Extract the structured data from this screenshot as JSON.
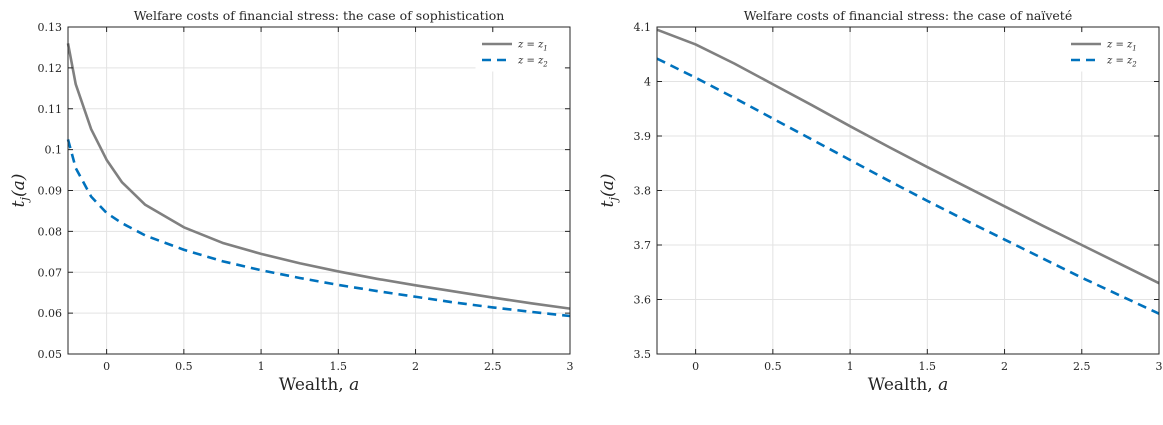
{
  "chart_data": [
    {
      "type": "line",
      "title": "Welfare costs of financial stress: the case of sophistication",
      "xlabel": "Wealth, a",
      "ylabel": "t_j(a)",
      "xlim": [
        -0.25,
        3
      ],
      "ylim": [
        0.05,
        0.13
      ],
      "xticks": [
        0,
        0.5,
        1,
        1.5,
        2,
        2.5,
        3
      ],
      "xtick_labels": [
        "0",
        "0.5",
        "1",
        "1.5",
        "2",
        "2.5",
        "3"
      ],
      "yticks": [
        0.05,
        0.06,
        0.07,
        0.08,
        0.09,
        0.1,
        0.11,
        0.12,
        0.13
      ],
      "ytick_labels": [
        "0.05",
        "0.06",
        "0.07",
        "0.08",
        "0.09",
        "0.1",
        "0.11",
        "0.12",
        "0.13"
      ],
      "grid": true,
      "legend_position": "top-right",
      "x": [
        -0.25,
        -0.2,
        -0.1,
        0,
        0.1,
        0.25,
        0.5,
        0.75,
        1,
        1.25,
        1.5,
        1.75,
        2,
        2.25,
        2.5,
        2.75,
        3
      ],
      "series": [
        {
          "name": "z = z_1",
          "color": "#808080",
          "style": "solid",
          "values": [
            0.126,
            0.116,
            0.105,
            0.0975,
            0.092,
            0.0865,
            0.081,
            0.0772,
            0.0745,
            0.0722,
            0.0702,
            0.0684,
            0.0668,
            0.0653,
            0.0638,
            0.0624,
            0.0611
          ]
        },
        {
          "name": "z = z_2",
          "color": "#0072BD",
          "style": "dashed",
          "values": [
            0.1025,
            0.0955,
            0.0885,
            0.0845,
            0.082,
            0.079,
            0.0755,
            0.0727,
            0.0705,
            0.0686,
            0.0669,
            0.0654,
            0.064,
            0.0626,
            0.0614,
            0.0603,
            0.0593
          ]
        }
      ]
    },
    {
      "type": "line",
      "title": "Welfare costs of financial stress: the case of naïveté",
      "xlabel": "Wealth, a",
      "ylabel": "t_j(a)",
      "xlim": [
        -0.25,
        3
      ],
      "ylim": [
        3.5,
        4.1
      ],
      "xticks": [
        0,
        0.5,
        1,
        1.5,
        2,
        2.5,
        3
      ],
      "xtick_labels": [
        "0",
        "0.5",
        "1",
        "1.5",
        "2",
        "2.5",
        "3"
      ],
      "yticks": [
        3.5,
        3.6,
        3.7,
        3.8,
        3.9,
        4.0,
        4.1
      ],
      "ytick_labels": [
        "3.5",
        "3.6",
        "3.7",
        "3.8",
        "3.9",
        "4",
        "4.1"
      ],
      "grid": true,
      "legend_position": "top-right",
      "x": [
        -0.25,
        0,
        0.25,
        0.5,
        0.75,
        1,
        1.25,
        1.5,
        1.75,
        2,
        2.25,
        2.5,
        2.75,
        3
      ],
      "series": [
        {
          "name": "z = z_1",
          "color": "#808080",
          "style": "solid",
          "values": [
            4.095,
            4.068,
            4.033,
            3.995,
            3.957,
            3.918,
            3.88,
            3.843,
            3.807,
            3.771,
            3.735,
            3.7,
            3.665,
            3.63
          ]
        },
        {
          "name": "z = z_2",
          "color": "#0072BD",
          "style": "dashed",
          "values": [
            4.042,
            4.007,
            3.97,
            3.932,
            3.894,
            3.856,
            3.818,
            3.781,
            3.745,
            3.71,
            3.675,
            3.64,
            3.607,
            3.574
          ]
        }
      ]
    }
  ]
}
